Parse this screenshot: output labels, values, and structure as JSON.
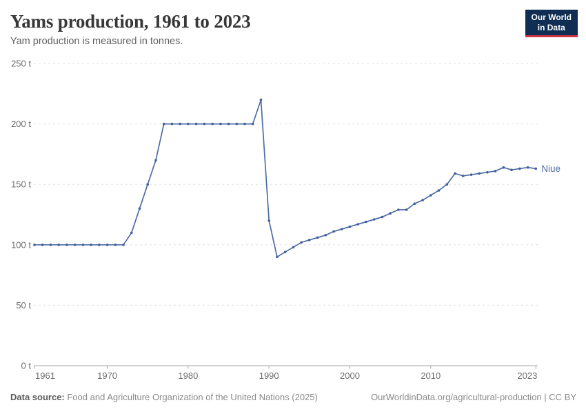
{
  "header": {
    "title": "Yams production, 1961 to 2023",
    "subtitle": "Yam production is measured in tonnes.",
    "logo": {
      "line1": "Our World",
      "line2": "in Data"
    }
  },
  "footer": {
    "source_label": "Data source:",
    "source_text": " Food and Agriculture Organization of the United Nations (2025)",
    "attribution": "OurWorldinData.org/agricultural-production | CC BY"
  },
  "colors": {
    "line": "#4d6da3",
    "point": "#3f5f9e",
    "end_label": "#4d6da3",
    "logo_bg": "#102e54",
    "logo_red": "#c9353d",
    "grid": "#e0e0e0",
    "axis": "#a5a5a5",
    "tick_text": "#6d6d6d"
  },
  "chart_data": {
    "type": "line",
    "title": "Yams production, 1961 to 2023",
    "subtitle": "Yam production is measured in tonnes.",
    "unit": "t",
    "grid": "horizontal-dashed",
    "legend_position": "end-of-line",
    "xlim": [
      1961,
      2023
    ],
    "ylim": [
      0,
      250
    ],
    "x_ticks": [
      1961,
      1970,
      1980,
      1990,
      2000,
      2010,
      2023
    ],
    "y_ticks": [
      {
        "value": 0,
        "label": "0 t"
      },
      {
        "value": 50,
        "label": "50 t"
      },
      {
        "value": 100,
        "label": "100 t"
      },
      {
        "value": 150,
        "label": "150 t"
      },
      {
        "value": 200,
        "label": "200 t"
      },
      {
        "value": 250,
        "label": "250 t"
      }
    ],
    "x": [
      1961,
      1962,
      1963,
      1964,
      1965,
      1966,
      1967,
      1968,
      1969,
      1970,
      1971,
      1972,
      1973,
      1974,
      1975,
      1976,
      1977,
      1978,
      1979,
      1980,
      1981,
      1982,
      1983,
      1984,
      1985,
      1986,
      1987,
      1988,
      1989,
      1990,
      1991,
      1992,
      1993,
      1994,
      1995,
      1996,
      1997,
      1998,
      1999,
      2000,
      2001,
      2002,
      2003,
      2004,
      2005,
      2006,
      2007,
      2008,
      2009,
      2010,
      2011,
      2012,
      2013,
      2014,
      2015,
      2016,
      2017,
      2018,
      2019,
      2020,
      2021,
      2022,
      2023
    ],
    "series": [
      {
        "name": "Niue",
        "values": [
          100,
          100,
          100,
          100,
          100,
          100,
          100,
          100,
          100,
          100,
          100,
          100,
          110,
          130,
          150,
          170,
          200,
          200,
          200,
          200,
          200,
          200,
          200,
          200,
          200,
          200,
          200,
          200,
          220,
          120,
          90,
          94,
          98,
          102,
          104,
          106,
          108,
          111,
          113,
          115,
          117,
          119,
          121,
          123,
          126,
          129,
          129,
          134,
          137,
          141,
          145,
          150,
          159,
          157,
          158,
          159,
          160,
          161,
          164,
          162,
          163,
          164,
          163
        ]
      }
    ]
  }
}
